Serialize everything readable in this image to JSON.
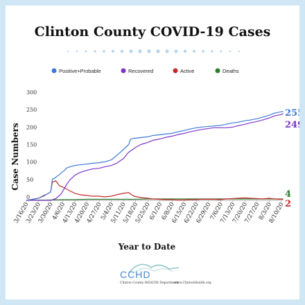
{
  "chart_data": {
    "type": "line",
    "title": "Clinton County COVID-19 Cases",
    "xlabel": "Year to Date",
    "ylabel": "Case Numbers",
    "ylim": [
      0,
      300
    ],
    "y_ticks": [
      0,
      50,
      100,
      150,
      200,
      250,
      300
    ],
    "x_tick_labels": [
      "3/16/20",
      "3/23/20",
      "3/30/20",
      "4/6/20",
      "4/13/20",
      "4/20/20",
      "4/27/20",
      "5/4/20",
      "5/11/20",
      "5/18/20",
      "5/25/20",
      "6/1/20",
      "6/8/20",
      "6/15/20",
      "6/22/20",
      "6/29/20",
      "7/6/20",
      "7/13/20",
      "7/20/20",
      "7/27/20",
      "8/3/20",
      "8/10/20"
    ],
    "grid": false,
    "legend_position": "top",
    "series": [
      {
        "name": "Positive+Probable",
        "color": "#3b78d8",
        "end_label": "255",
        "x": [
          0,
          3,
          7,
          10,
          12,
          14,
          15,
          17,
          19,
          21,
          22,
          23,
          25,
          28,
          31,
          35,
          38,
          42,
          45,
          49,
          52,
          56,
          59,
          60,
          62,
          63,
          66,
          70,
          73,
          77,
          80,
          84,
          87,
          91,
          94,
          98,
          101,
          105,
          108,
          112,
          115,
          119,
          122,
          126,
          129,
          133,
          136,
          140,
          143,
          147,
          148
        ],
        "y": [
          0,
          2,
          6,
          12,
          18,
          24,
          60,
          66,
          74,
          82,
          86,
          92,
          96,
          100,
          102,
          104,
          106,
          108,
          110,
          116,
          128,
          146,
          160,
          175,
          178,
          178,
          180,
          182,
          186,
          188,
          190,
          192,
          196,
          200,
          204,
          208,
          210,
          212,
          213,
          215,
          218,
          222,
          224,
          228,
          230,
          234,
          238,
          244,
          250,
          254,
          255
        ]
      },
      {
        "name": "Recovered",
        "color": "#7a35c8",
        "end_label": "249",
        "x": [
          0,
          14,
          17,
          20,
          23,
          25,
          28,
          31,
          35,
          38,
          42,
          45,
          49,
          52,
          56,
          59,
          62,
          63,
          66,
          70,
          73,
          77,
          80,
          84,
          87,
          91,
          94,
          98,
          101,
          105,
          108,
          112,
          115,
          119,
          122,
          126,
          129,
          133,
          136,
          140,
          143,
          147,
          148
        ],
        "y": [
          0,
          0,
          5,
          18,
          44,
          58,
          72,
          80,
          86,
          90,
          92,
          96,
          100,
          106,
          120,
          138,
          148,
          152,
          160,
          166,
          172,
          176,
          180,
          184,
          188,
          192,
          196,
          200,
          203,
          206,
          208,
          208,
          208,
          210,
          214,
          218,
          222,
          226,
          230,
          236,
          242,
          246,
          249
        ]
      },
      {
        "name": "Active",
        "color": "#c62828",
        "end_label": "2",
        "x": [
          0,
          7,
          10,
          12,
          14,
          15,
          17,
          19,
          21,
          24,
          28,
          31,
          35,
          38,
          42,
          45,
          49,
          52,
          56,
          59,
          60,
          62,
          66,
          70,
          73,
          77,
          80,
          84,
          87,
          91,
          94,
          98,
          101,
          105,
          108,
          112,
          115,
          119,
          122,
          126,
          129,
          133,
          136,
          140,
          143,
          147,
          148
        ],
        "y": [
          0,
          6,
          14,
          18,
          24,
          52,
          56,
          42,
          38,
          30,
          20,
          16,
          14,
          12,
          12,
          10,
          12,
          16,
          20,
          22,
          18,
          12,
          8,
          6,
          4,
          3,
          2,
          2,
          1,
          1,
          2,
          2,
          3,
          3,
          3,
          2,
          4,
          5,
          6,
          7,
          6,
          5,
          4,
          6,
          4,
          3,
          2
        ]
      },
      {
        "name": "Deaths",
        "color": "#2e7d32",
        "end_label": "4",
        "x": [
          0,
          14,
          21,
          28,
          35,
          42,
          49,
          56,
          63,
          70,
          77,
          84,
          91,
          98,
          105,
          112,
          119,
          126,
          133,
          140,
          148
        ],
        "y": [
          0,
          1,
          2,
          2,
          3,
          3,
          3,
          3,
          3,
          4,
          4,
          4,
          4,
          4,
          4,
          4,
          4,
          4,
          4,
          4,
          4
        ]
      }
    ]
  },
  "logo": {
    "name": "CCHD",
    "subtitle": "Clinton County HEALTH Department",
    "url": "www.ClintonHealth.org"
  }
}
